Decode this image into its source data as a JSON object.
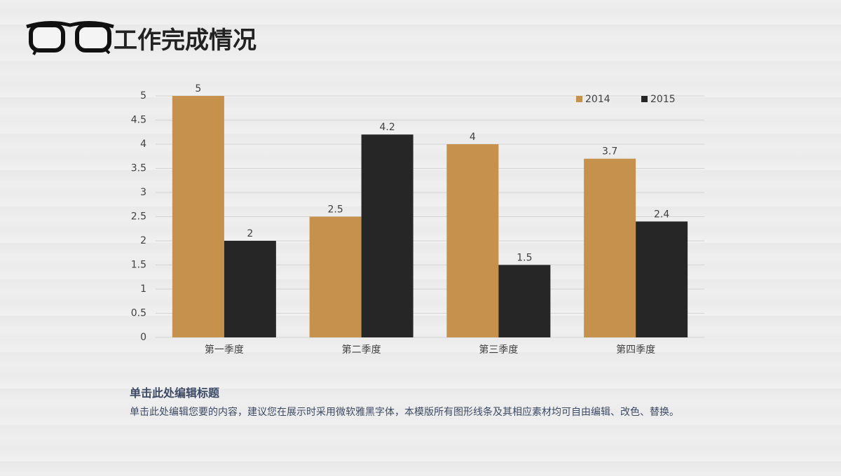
{
  "slide": {
    "title": "工作完成情况",
    "text_heading": "单击此处编辑标题",
    "text_body": "单击此处编辑您要的内容，建议您在展示时采用微软雅黑字体，本模版所有图形线条及其相应素材均可自由编辑、改色、替换。"
  },
  "chart_data": {
    "type": "bar",
    "categories": [
      "第一季度",
      "第二季度",
      "第三季度",
      "第四季度"
    ],
    "series": [
      {
        "name": "2014",
        "color": "#c6914d",
        "values": [
          5,
          2.5,
          4,
          3.7
        ]
      },
      {
        "name": "2015",
        "color": "#262626",
        "values": [
          2,
          4.2,
          1.5,
          2.4
        ]
      }
    ],
    "ylim": [
      0,
      5
    ],
    "yticks": [
      0,
      0.5,
      1,
      1.5,
      2,
      2.5,
      3,
      3.5,
      4,
      4.5,
      5
    ],
    "grid": true,
    "legend": "top-right",
    "data_labels": true
  }
}
